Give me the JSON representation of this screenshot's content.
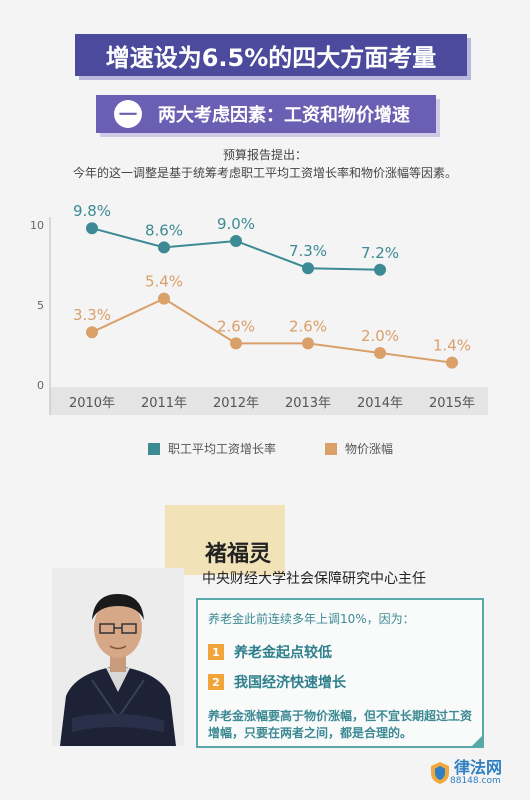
{
  "header": {
    "title": "增速设为6.5%的四大方面考量",
    "section_num": "一",
    "section_title": "两大考虑因素：工资和物价增速"
  },
  "intro": {
    "line1": "预算报告提出：",
    "line2": "今年的这一调整是基于统筹考虑职工平均工资增长率和物价涨幅等因素。"
  },
  "chart_data": {
    "type": "line",
    "categories": [
      "2010年",
      "2011年",
      "2012年",
      "2013年",
      "2014年",
      "2015年"
    ],
    "yticks": [
      "0",
      "5",
      "10"
    ],
    "ylim": [
      0,
      10
    ],
    "grid": false,
    "legend_position": "bottom",
    "series": [
      {
        "name": "职工平均工资增长率",
        "color": "#3d8a94",
        "values": [
          9.8,
          8.6,
          9.0,
          7.3,
          7.2,
          null
        ],
        "labels": [
          "9.8%",
          "8.6%",
          "9.0%",
          "7.3%",
          "7.2%",
          ""
        ]
      },
      {
        "name": "物价涨幅",
        "color": "#d9a06a",
        "values": [
          3.3,
          5.4,
          2.6,
          2.6,
          2.0,
          1.4
        ],
        "labels": [
          "3.3%",
          "5.4%",
          "2.6%",
          "2.6%",
          "2.0%",
          "1.4%"
        ]
      }
    ]
  },
  "person": {
    "name": "褚福灵",
    "title": "中央财经大学社会保障研究中心主任"
  },
  "quote": {
    "intro": "养老金此前连续多年上调10%，因为：",
    "reasons": [
      {
        "num": "1",
        "text": "养老金起点较低"
      },
      {
        "num": "2",
        "text": "我国经济快速增长"
      }
    ],
    "footer": "养老金涨幅要高于物价涨幅，但不宜长期超过工资增幅，只要在两者之间，都是合理的。"
  },
  "watermark": {
    "name": "律法网",
    "url": "88148.com"
  }
}
